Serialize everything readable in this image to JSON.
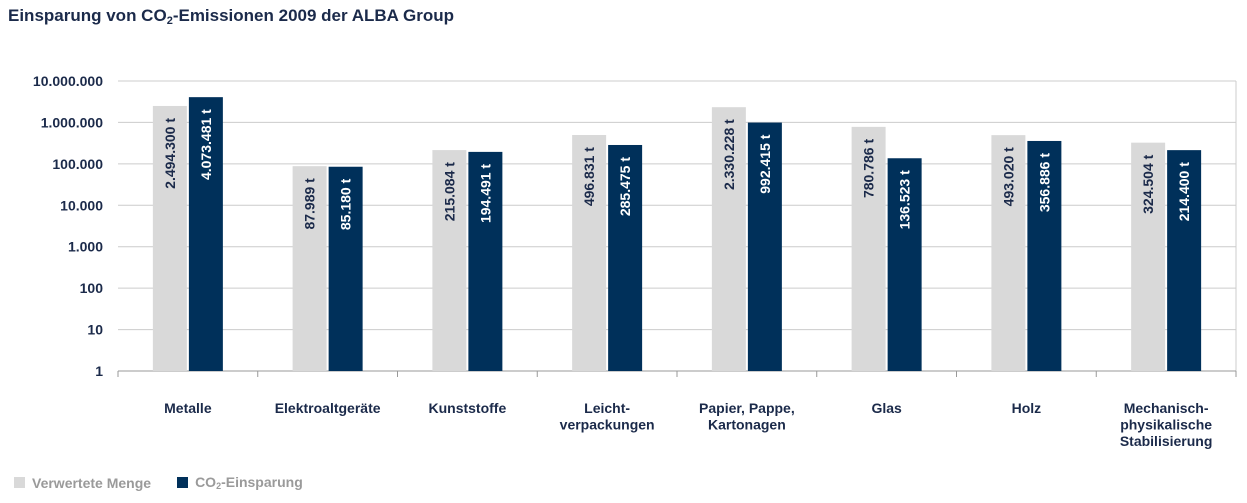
{
  "title": {
    "prefix": "Einsparung von CO",
    "sub": "2",
    "suffix": "-Emissionen 2009 der ALBA Group"
  },
  "colors": {
    "series_1": "#d9d9d9",
    "series_2": "#00305a",
    "axis_text": "#1b2a4a",
    "grid": "#cccccc"
  },
  "legend": {
    "item_1": "Verwertete Menge",
    "item_2_prefix": "CO",
    "item_2_sub": "2",
    "item_2_suffix": "-Einsparung"
  },
  "chart_data": {
    "type": "bar",
    "yscale": "log",
    "ylim": [
      1,
      10000000
    ],
    "grid": true,
    "y_ticks": [
      "10.000.000",
      "1.000.000",
      "100.000",
      "10.000",
      "1.000",
      "100",
      "10",
      "1"
    ],
    "categories": [
      [
        "Metalle"
      ],
      [
        "Elektroaltgeräte"
      ],
      [
        "Kunststoffe"
      ],
      [
        "Leicht-",
        "verpackungen"
      ],
      [
        "Papier, Pappe,",
        "Kartonagen"
      ],
      [
        "Glas"
      ],
      [
        "Holz"
      ],
      [
        "Mechanisch-",
        "physikalische",
        "Stabilisierung"
      ]
    ],
    "series": [
      {
        "name": "Verwertete Menge",
        "values": [
          2494300,
          87989,
          215084,
          496831,
          2330228,
          780786,
          493020,
          324504
        ],
        "labels": [
          "2.494.300 t",
          "87.989 t",
          "215.084 t",
          "496.831 t",
          "2.330.228 t",
          "780.786 t",
          "493.020 t",
          "324.504 t"
        ]
      },
      {
        "name": "CO2-Einsparung",
        "values": [
          4073481,
          85180,
          194491,
          285475,
          992415,
          136523,
          356886,
          214400
        ],
        "labels": [
          "4.073.481 t",
          "85.180 t",
          "194.491 t",
          "285.475 t",
          "992.415 t",
          "136.523 t",
          "356.886 t",
          "214.400 t"
        ]
      }
    ]
  }
}
